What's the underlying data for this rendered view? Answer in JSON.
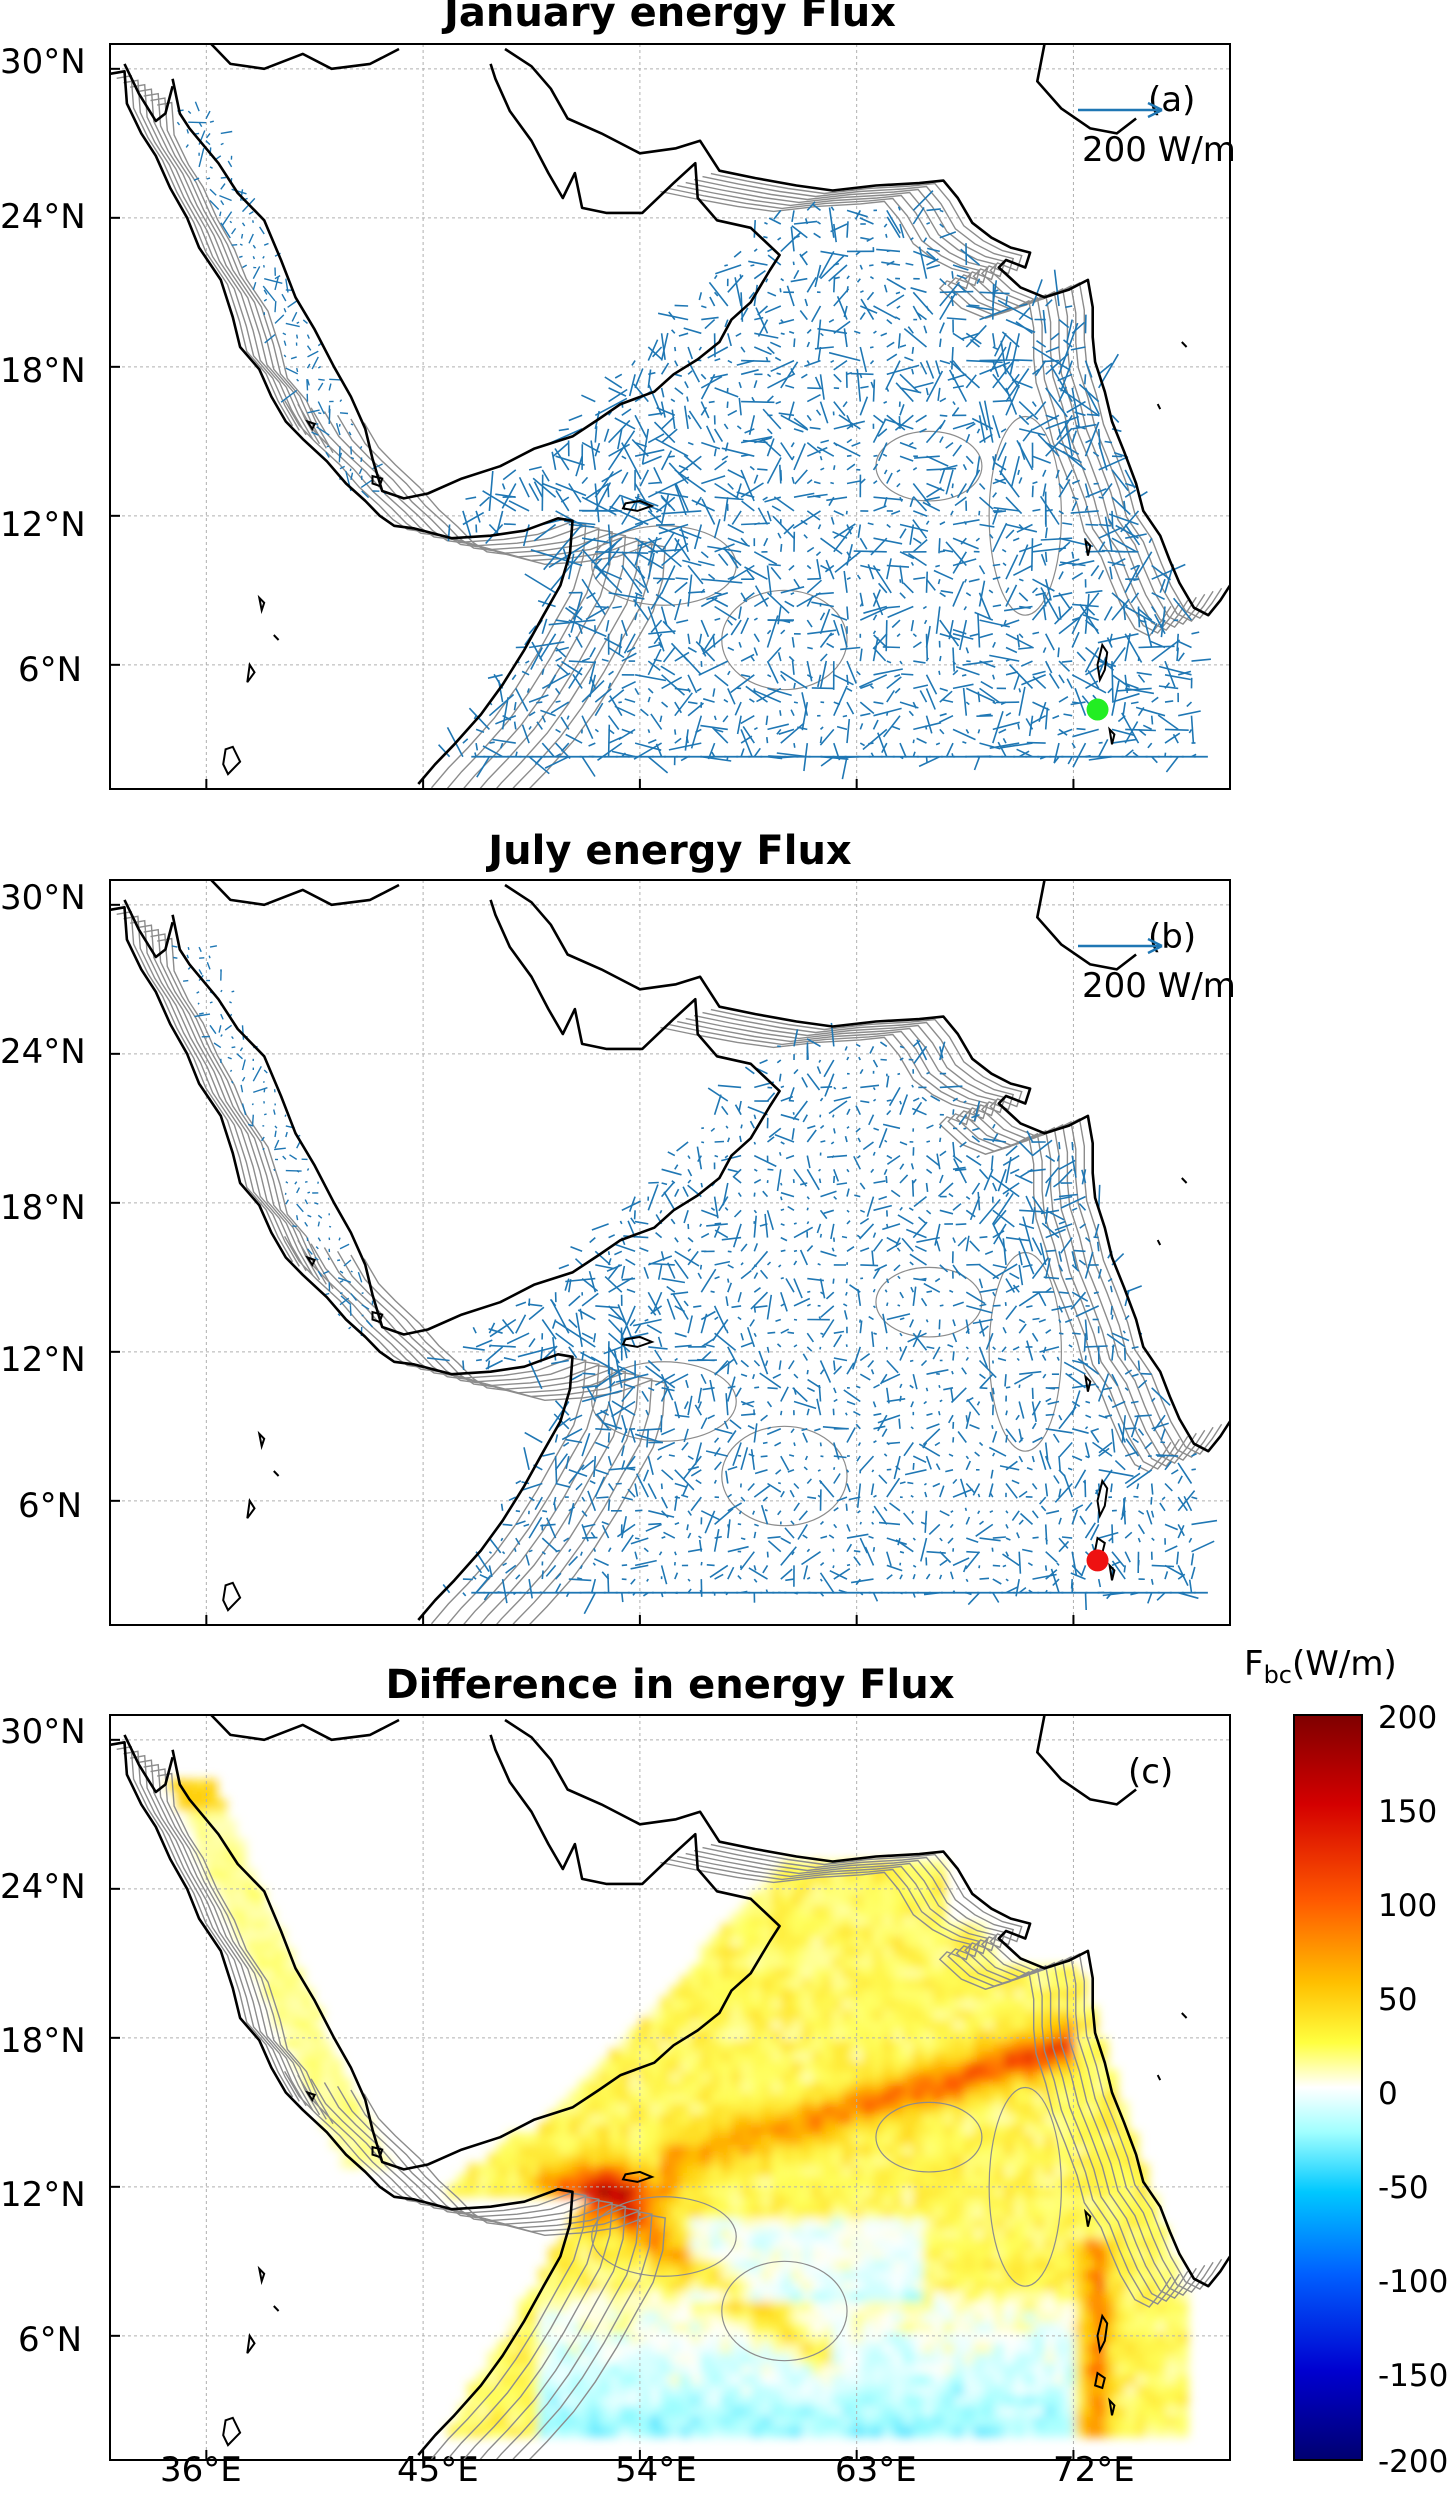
{
  "panels": [
    {
      "title": "January energy Flux",
      "letter": "(a)",
      "scale_label": "200 W/m",
      "marker": {
        "lon": 73.0,
        "lat": 4.2,
        "color": "#22ee22"
      }
    },
    {
      "title": "July energy Flux",
      "letter": "(b)",
      "scale_label": "200 W/m",
      "marker": {
        "lon": 73.0,
        "lat": 3.6,
        "color": "#ee1111"
      }
    },
    {
      "title": "Difference in energy Flux",
      "letter": "(c)"
    }
  ],
  "axes": {
    "lat_ticks": [
      "30°N",
      "24°N",
      "18°N",
      "12°N",
      "6°N"
    ],
    "lat_values": [
      30,
      24,
      18,
      12,
      6
    ],
    "lon_ticks": [
      "36°E",
      "45°E",
      "54°E",
      "63°E",
      "72°E"
    ],
    "lon_values": [
      36,
      45,
      54,
      63,
      72
    ],
    "lon_range": [
      32,
      78.5
    ],
    "lat_range": [
      1,
      31
    ],
    "grid": true
  },
  "colorbar": {
    "title_main": "F",
    "title_sub": "bc",
    "title_unit": "(W/m)",
    "ticks": [
      "200",
      "150",
      "100",
      "50",
      "0",
      "-50",
      "-100",
      "-150",
      "-200"
    ],
    "range": [
      -200,
      200
    ],
    "colormap": "jet-with-white-center"
  },
  "colors": {
    "vector": "#1f77b4",
    "coast": "#000000",
    "contour": "#8c8c8c",
    "grid": "#b0b0b0"
  }
}
